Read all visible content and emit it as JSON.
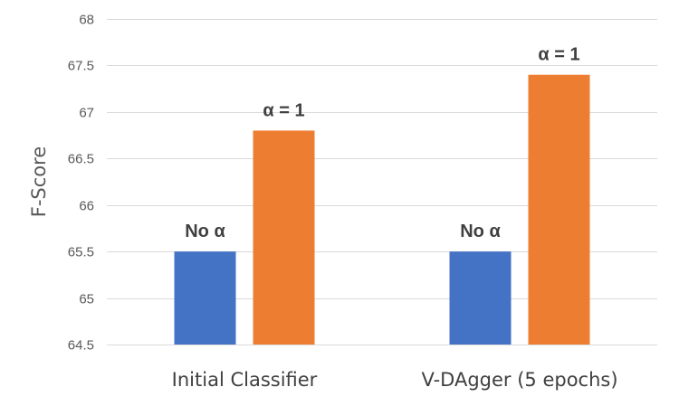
{
  "chart_data": {
    "type": "bar",
    "categories": [
      "Initial Classifier",
      "V-DAgger (5 epochs)"
    ],
    "series": [
      {
        "values": [
          65.5,
          65.5
        ],
        "data_labels": [
          "No α",
          "No α"
        ],
        "color": "#4472C4"
      },
      {
        "values": [
          66.8,
          67.4
        ],
        "data_labels": [
          "α = 1",
          "α = 1"
        ],
        "color": "#ED7D31"
      }
    ],
    "ylabel": "F-Score",
    "xlabel": "",
    "ylim": [
      64.5,
      68
    ],
    "yticks": [
      "64.5",
      "65",
      "65.5",
      "66",
      "66.5",
      "67",
      "67.5",
      "68"
    ],
    "grid": true,
    "legend": "none"
  }
}
